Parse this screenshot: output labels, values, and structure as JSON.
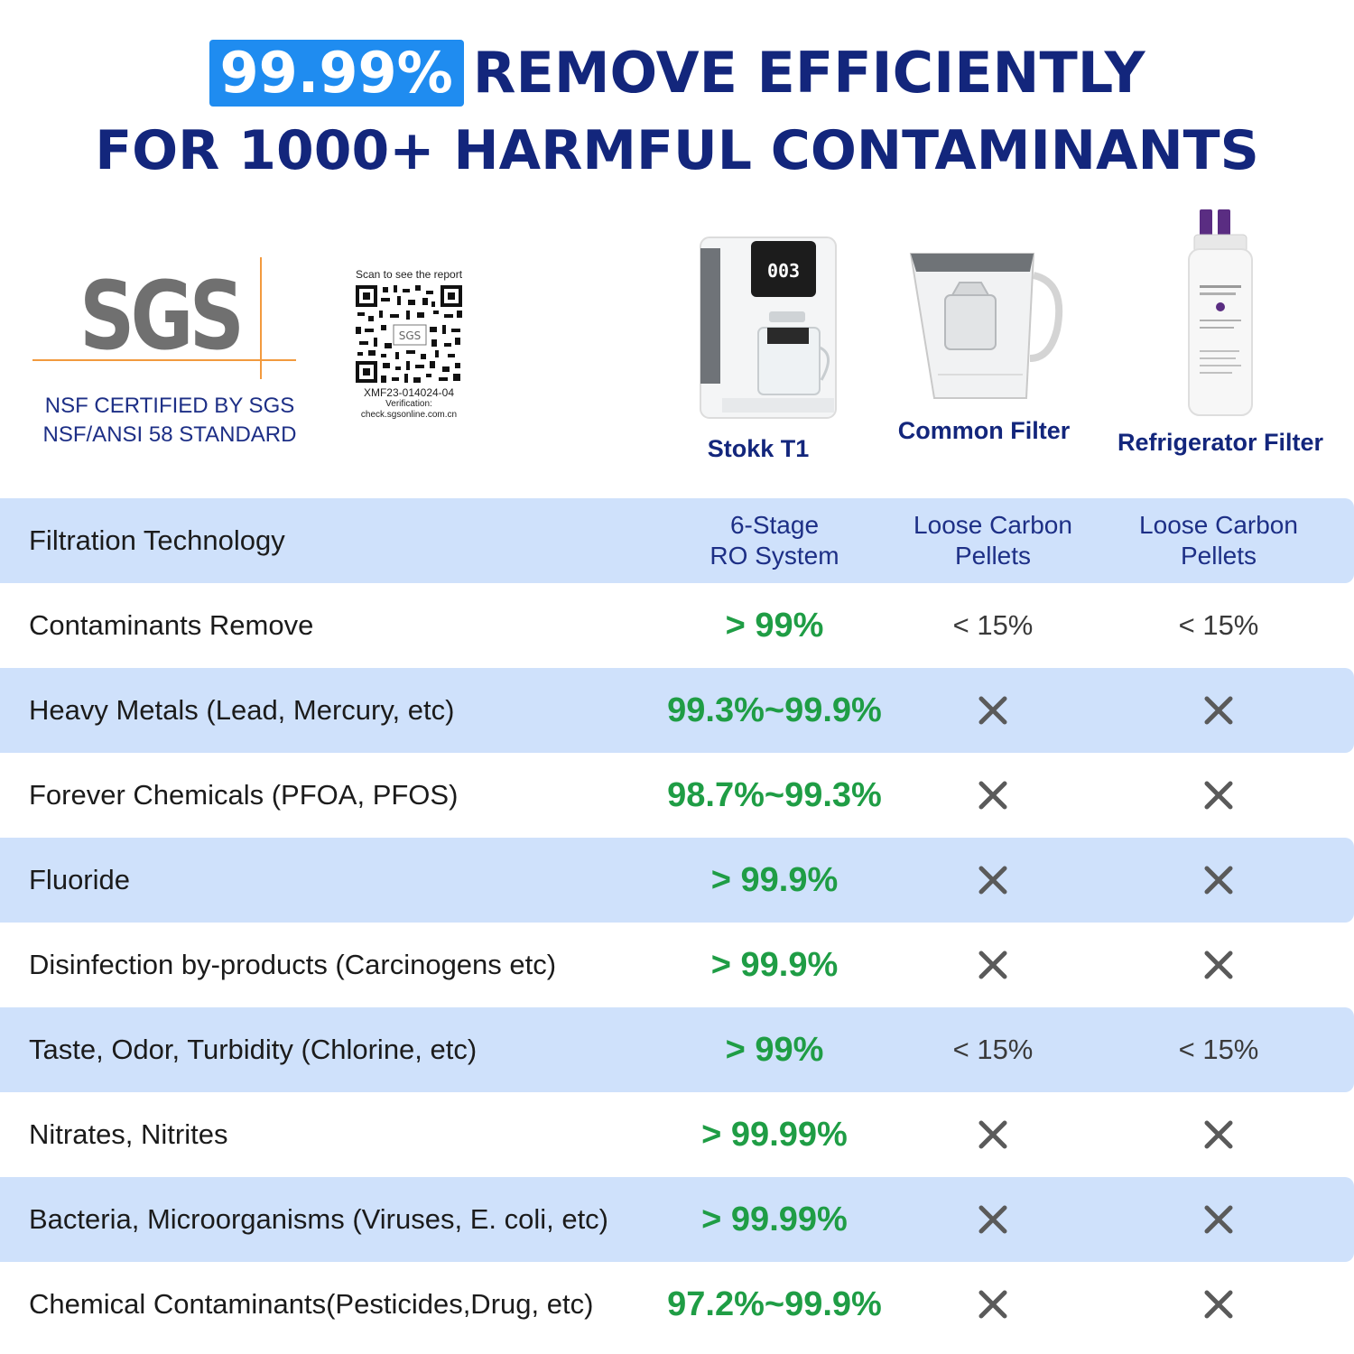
{
  "headline": {
    "badge": "99.99%",
    "line1_rest": "REMOVE EFFICIENTLY",
    "line2": "FOR 1000+ HARMFUL CONTAMINANTS"
  },
  "certification": {
    "logo_text": "SGS",
    "line1": "NSF CERTIFIED BY SGS",
    "line2": "NSF/ANSI 58 STANDARD"
  },
  "qr": {
    "caption": "Scan to see the report",
    "logo_text": "SGS",
    "code": "XMF23-014024-04",
    "verification_label": "Verification:",
    "verification_url": "check.sgsonline.com.cn"
  },
  "products": [
    {
      "name": "Stokk T1",
      "icon": "water-dispenser-icon",
      "display": "003"
    },
    {
      "name": "Common Filter",
      "icon": "pitcher-filter-icon"
    },
    {
      "name": "Refrigerator Filter",
      "icon": "fridge-filter-icon"
    }
  ],
  "colors": {
    "navy": "#13267c",
    "badge_blue": "#1f8cf0",
    "row_blue": "#cfe1fb",
    "green": "#1f9d45",
    "x_grey": "#5a5a5a",
    "sgs_orange": "#f29a3e"
  },
  "rows": [
    {
      "label": "Filtration Technology",
      "stokk_line1": "6-Stage",
      "stokk_line2": "RO System",
      "common_line1": "Loose Carbon",
      "common_line2": "Pellets",
      "fridge_line1": "Loose Carbon",
      "fridge_line2": "Pellets"
    },
    {
      "label": "Contaminants Remove",
      "stokk": "> 99%",
      "common": "< 15%",
      "fridge": "< 15%"
    },
    {
      "label": "Heavy Metals (Lead, Mercury, etc)",
      "stokk": "99.3%~99.9%",
      "common": "x-icon",
      "fridge": "x-icon"
    },
    {
      "label": "Forever Chemicals (PFOA, PFOS)",
      "stokk": "98.7%~99.3%",
      "common": "x-icon",
      "fridge": "x-icon"
    },
    {
      "label": "Fluoride",
      "stokk": "> 99.9%",
      "common": "x-icon",
      "fridge": "x-icon"
    },
    {
      "label": "Disinfection by-products (Carcinogens etc)",
      "stokk": "> 99.9%",
      "common": "x-icon",
      "fridge": "x-icon"
    },
    {
      "label": "Taste, Odor, Turbidity (Chlorine, etc)",
      "stokk": "> 99%",
      "common": "< 15%",
      "fridge": "< 15%"
    },
    {
      "label": "Nitrates, Nitrites",
      "stokk": "> 99.99%",
      "common": "x-icon",
      "fridge": "x-icon"
    },
    {
      "label": "Bacteria, Microorganisms (Viruses, E. coli, etc)",
      "stokk": "> 99.99%",
      "common": "x-icon",
      "fridge": "x-icon"
    },
    {
      "label": "Chemical Contaminants(Pesticides,Drug, etc)",
      "stokk": "97.2%~99.9%",
      "common": "x-icon",
      "fridge": "x-icon"
    }
  ]
}
